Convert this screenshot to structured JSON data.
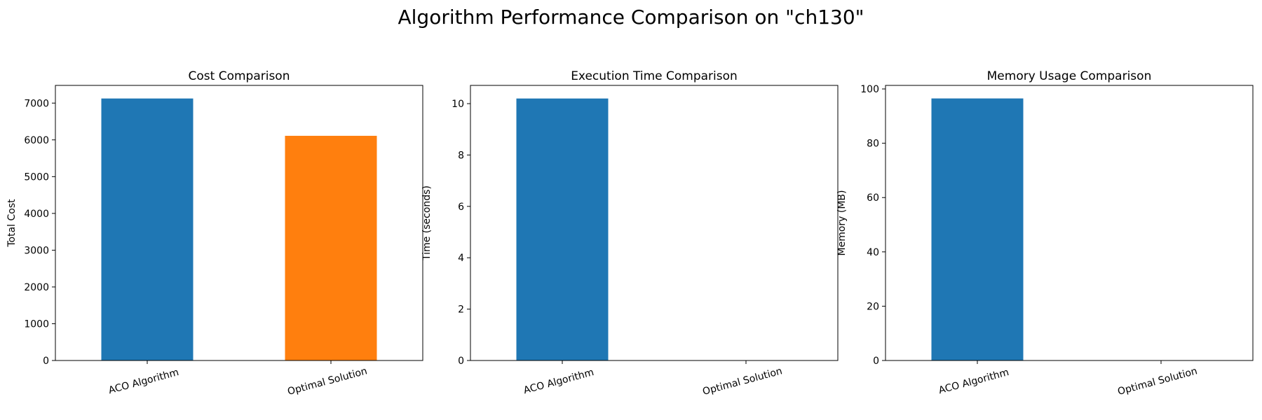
{
  "figure": {
    "suptitle": "Algorithm Performance Comparison on \"ch130\""
  },
  "colors": {
    "aco": "#1f77b4",
    "optimal": "#ff7f0e",
    "axis": "#000000",
    "background": "#ffffff"
  },
  "chart_data": [
    {
      "type": "bar",
      "title": "Cost Comparison",
      "xlabel": "",
      "ylabel": "Total Cost",
      "categories": [
        "ACO Algorithm",
        "Optimal Solution"
      ],
      "values": [
        7125,
        6110
      ],
      "bar_colors": [
        "#1f77b4",
        "#ff7f0e"
      ],
      "ylim": [
        0,
        7481
      ],
      "yticks": [
        0,
        1000,
        2000,
        3000,
        4000,
        5000,
        6000,
        7000
      ],
      "ytick_labels": [
        "0",
        "1000",
        "2000",
        "3000",
        "4000",
        "5000",
        "6000",
        "7000"
      ],
      "xtick_rotation_deg": -15,
      "grid": false,
      "legend": "none"
    },
    {
      "type": "bar",
      "title": "Execution Time Comparison",
      "xlabel": "",
      "ylabel": "Time (seconds)",
      "categories": [
        "ACO Algorithm",
        "Optimal Solution"
      ],
      "values": [
        10.2,
        0
      ],
      "bar_colors": [
        "#1f77b4",
        "#ff7f0e"
      ],
      "ylim": [
        0,
        10.71
      ],
      "yticks": [
        0,
        2,
        4,
        6,
        8,
        10
      ],
      "ytick_labels": [
        "0",
        "2",
        "4",
        "6",
        "8",
        "10"
      ],
      "xtick_rotation_deg": -15,
      "grid": false,
      "legend": "none"
    },
    {
      "type": "bar",
      "title": "Memory Usage Comparison",
      "xlabel": "",
      "ylabel": "Memory (MB)",
      "categories": [
        "ACO Algorithm",
        "Optimal Solution"
      ],
      "values": [
        96.5,
        0
      ],
      "bar_colors": [
        "#1f77b4",
        "#ff7f0e"
      ],
      "ylim": [
        0,
        101.3
      ],
      "yticks": [
        0,
        20,
        40,
        60,
        80,
        100
      ],
      "ytick_labels": [
        "0",
        "20",
        "40",
        "60",
        "80",
        "100"
      ],
      "xtick_rotation_deg": -15,
      "grid": false,
      "legend": "none"
    }
  ]
}
